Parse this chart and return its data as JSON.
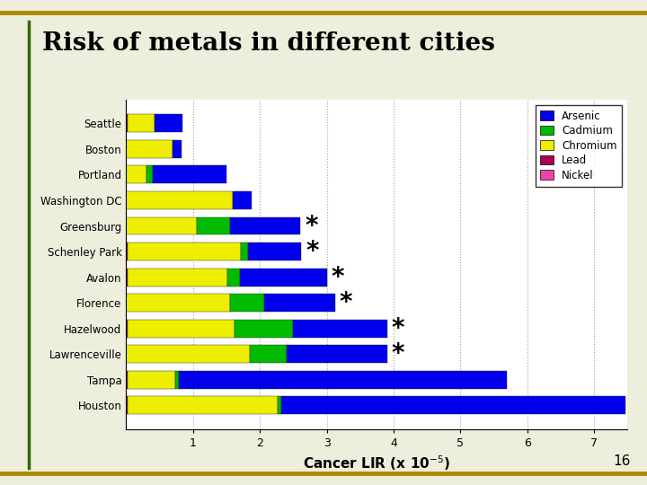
{
  "cities": [
    "Seattle",
    "Boston",
    "Portland",
    "Washington DC",
    "Greensburg",
    "Schenley Park",
    "Avalon",
    "Florence",
    "Hazelwood",
    "Lawrenceville",
    "Tampa",
    "Houston"
  ],
  "metals": [
    "Lead",
    "Nickel",
    "Chromium",
    "Cadmium",
    "Arsenic"
  ],
  "colors": {
    "Arsenic": "#0000EE",
    "Cadmium": "#00BB00",
    "Chromium": "#EEEE00",
    "Lead": "#AA0055",
    "Nickel": "#EE44AA"
  },
  "data": {
    "Seattle": {
      "Lead": 0.02,
      "Nickel": 0.0,
      "Chromium": 0.4,
      "Cadmium": 0.0,
      "Arsenic": 0.42
    },
    "Boston": {
      "Lead": 0.0,
      "Nickel": 0.0,
      "Chromium": 0.7,
      "Cadmium": 0.0,
      "Arsenic": 0.13
    },
    "Portland": {
      "Lead": 0.0,
      "Nickel": 0.0,
      "Chromium": 0.3,
      "Cadmium": 0.1,
      "Arsenic": 1.1
    },
    "Washington DC": {
      "Lead": 0.0,
      "Nickel": 0.0,
      "Chromium": 1.6,
      "Cadmium": 0.0,
      "Arsenic": 0.28
    },
    "Greensburg": {
      "Lead": 0.0,
      "Nickel": 0.0,
      "Chromium": 1.05,
      "Cadmium": 0.5,
      "Arsenic": 1.05
    },
    "Schenley Park": {
      "Lead": 0.02,
      "Nickel": 0.0,
      "Chromium": 1.7,
      "Cadmium": 0.1,
      "Arsenic": 0.8
    },
    "Avalon": {
      "Lead": 0.02,
      "Nickel": 0.0,
      "Chromium": 1.5,
      "Cadmium": 0.18,
      "Arsenic": 1.3
    },
    "Florence": {
      "Lead": 0.0,
      "Nickel": 0.0,
      "Chromium": 1.55,
      "Cadmium": 0.52,
      "Arsenic": 1.05
    },
    "Hazelwood": {
      "Lead": 0.02,
      "Nickel": 0.0,
      "Chromium": 1.6,
      "Cadmium": 0.88,
      "Arsenic": 1.4
    },
    "Lawrenceville": {
      "Lead": 0.0,
      "Nickel": 0.0,
      "Chromium": 1.85,
      "Cadmium": 0.55,
      "Arsenic": 1.5
    },
    "Tampa": {
      "Lead": 0.02,
      "Nickel": 0.0,
      "Chromium": 0.72,
      "Cadmium": 0.05,
      "Arsenic": 4.9
    },
    "Houston": {
      "Lead": 0.02,
      "Nickel": 0.0,
      "Chromium": 2.25,
      "Cadmium": 0.05,
      "Arsenic": 5.15
    }
  },
  "asterisk_cities": [
    "Greensburg",
    "Schenley Park",
    "Avalon",
    "Florence",
    "Hazelwood",
    "Lawrenceville"
  ],
  "title": "Risk of metals in different cities",
  "xlabel": "Cancer LIR (x 10-5)",
  "xlim": [
    0,
    7.5
  ],
  "xticks": [
    1,
    2,
    3,
    4,
    5,
    6,
    7
  ],
  "title_color": "#000000",
  "title_fontsize": 20,
  "slide_background": "#EEEEDD",
  "border_color": "#AA8800",
  "page_number": "16"
}
